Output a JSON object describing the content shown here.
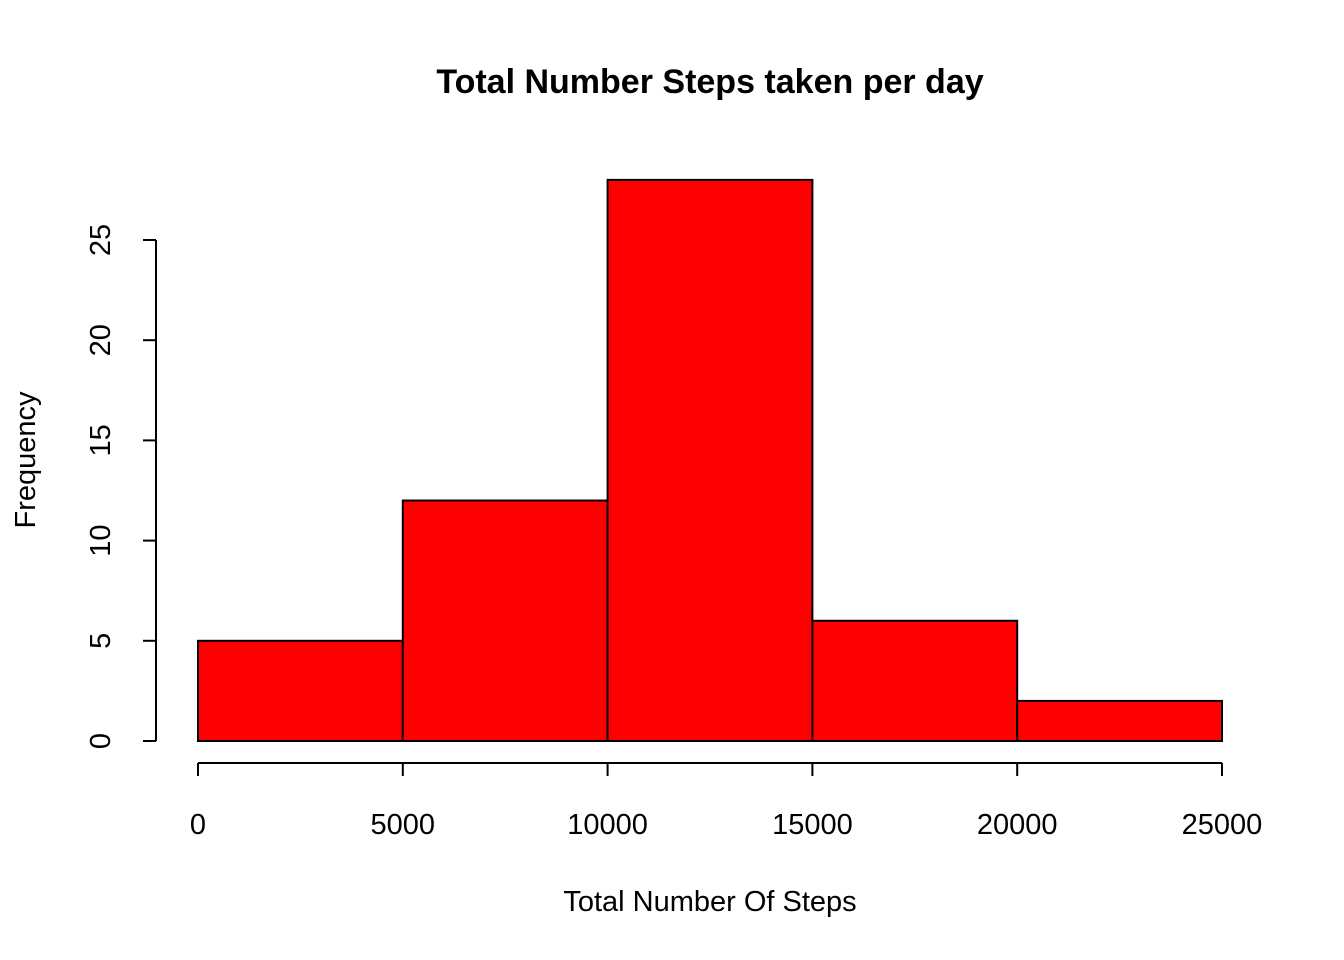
{
  "chart_data": {
    "type": "bar",
    "subtype": "histogram",
    "title": "Total Number Steps taken per day",
    "xlabel": "Total Number Of Steps",
    "ylabel": "Frequency",
    "bins": [
      {
        "start": 0,
        "end": 5000,
        "value": 5
      },
      {
        "start": 5000,
        "end": 10000,
        "value": 12
      },
      {
        "start": 10000,
        "end": 15000,
        "value": 28
      },
      {
        "start": 15000,
        "end": 20000,
        "value": 6
      },
      {
        "start": 20000,
        "end": 25000,
        "value": 2
      }
    ],
    "xlim": [
      0,
      25000
    ],
    "ylim": [
      0,
      28
    ],
    "x_ticks": [
      "0",
      "5000",
      "10000",
      "15000",
      "20000",
      "25000"
    ],
    "y_ticks": [
      "0",
      "5",
      "10",
      "15",
      "20",
      "25"
    ],
    "bar_color": "#ff0000",
    "border_color": "#000000",
    "grid": false,
    "legend": "none"
  }
}
